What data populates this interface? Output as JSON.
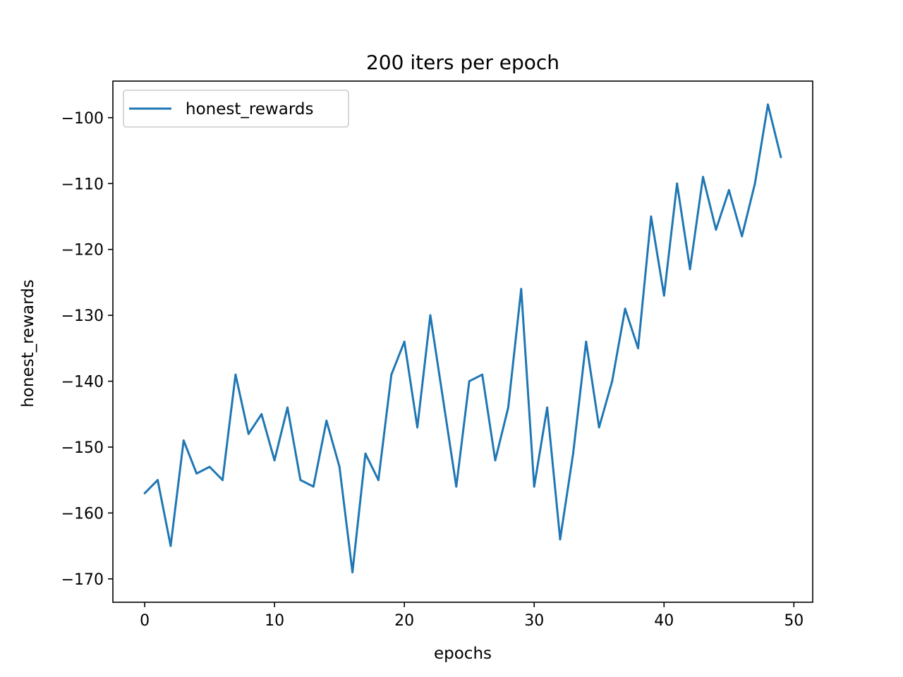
{
  "chart_data": {
    "type": "line",
    "title": "200 iters per epoch",
    "xlabel": "epochs",
    "ylabel": "honest_rewards",
    "xlim": [
      -2.45,
      51.45
    ],
    "ylim": [
      -173.55,
      -94.45
    ],
    "xticks": [
      0,
      10,
      20,
      30,
      40,
      50
    ],
    "yticks": [
      -170,
      -160,
      -150,
      -140,
      -130,
      -120,
      -110,
      -100
    ],
    "xtick_labels": [
      "0",
      "10",
      "20",
      "30",
      "40",
      "50"
    ],
    "ytick_labels": [
      "−170",
      "−160",
      "−150",
      "−140",
      "−130",
      "−120",
      "−110",
      "−100"
    ],
    "grid": false,
    "legend_position": "top-left",
    "series": [
      {
        "name": "honest_rewards",
        "color": "#1f77b4",
        "x": [
          0,
          1,
          2,
          3,
          4,
          5,
          6,
          7,
          8,
          9,
          10,
          11,
          12,
          13,
          14,
          15,
          16,
          17,
          18,
          19,
          20,
          21,
          22,
          23,
          24,
          25,
          26,
          27,
          28,
          29,
          30,
          31,
          32,
          33,
          34,
          35,
          36,
          37,
          38,
          39,
          40,
          41,
          42,
          43,
          44,
          45,
          46,
          47,
          48,
          49
        ],
        "values": [
          -157,
          -155,
          -165,
          -149,
          -154,
          -153,
          -155,
          -139,
          -148,
          -145,
          -152,
          -144,
          -155,
          -156,
          -146,
          -153,
          -169,
          -151,
          -155,
          -139,
          -134,
          -147,
          -130,
          -143,
          -156,
          -140,
          -139,
          -152,
          -144,
          -126,
          -156,
          -144,
          -164,
          -151,
          -134,
          -147,
          -140,
          -129,
          -135,
          -115,
          -127,
          -110,
          -123,
          -109,
          -117,
          -111,
          -118,
          -110,
          -98,
          -106
        ]
      }
    ]
  }
}
